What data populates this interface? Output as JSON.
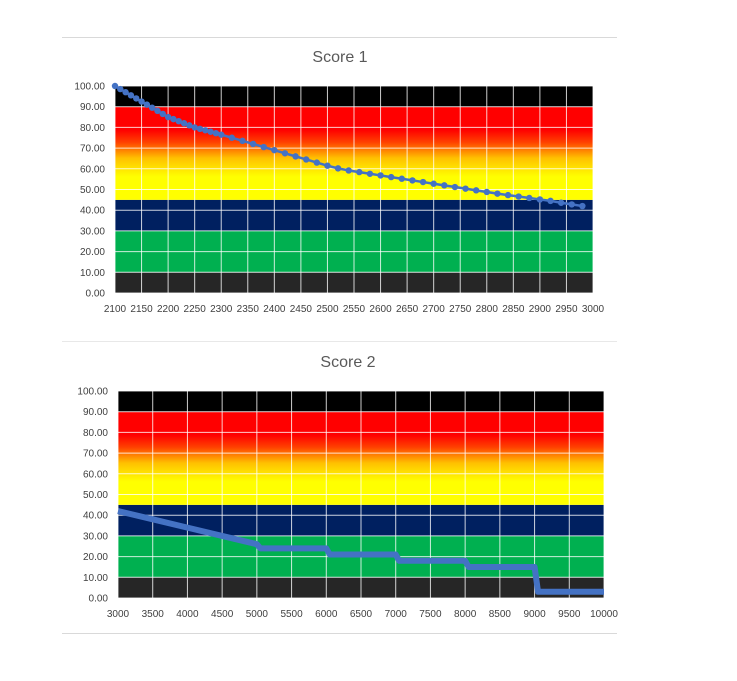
{
  "charts": [
    {
      "title": "Score 1",
      "chart_data": {
        "type": "scatter",
        "title": "Score 1",
        "xlim": [
          2100,
          3000
        ],
        "ylim": [
          0,
          100
        ],
        "x_ticks": [
          "2100",
          "2150",
          "2200",
          "2250",
          "2300",
          "2350",
          "2400",
          "2450",
          "2500",
          "2550",
          "2600",
          "2650",
          "2700",
          "2750",
          "2800",
          "2850",
          "2900",
          "2950",
          "3000"
        ],
        "y_ticks": [
          "0.00",
          "10.00",
          "20.00",
          "30.00",
          "40.00",
          "50.00",
          "60.00",
          "70.00",
          "80.00",
          "90.00",
          "100.00"
        ],
        "bands": [
          {
            "from": 0,
            "to": 10,
            "color": "#262626"
          },
          {
            "from": 10,
            "to": 30,
            "color": "#00b050"
          },
          {
            "from": 30,
            "to": 45,
            "color": "#002060"
          },
          {
            "from": 45,
            "to": 90,
            "color": "gradient-yellow-red"
          },
          {
            "from": 90,
            "to": 100,
            "color": "#000000"
          }
        ],
        "series_color": "#4472c4",
        "x": [
          2100,
          2110,
          2120,
          2130,
          2140,
          2150,
          2160,
          2170,
          2180,
          2190,
          2200,
          2210,
          2220,
          2230,
          2240,
          2250,
          2260,
          2270,
          2280,
          2290,
          2300,
          2320,
          2340,
          2360,
          2380,
          2400,
          2420,
          2440,
          2460,
          2480,
          2500,
          2520,
          2540,
          2560,
          2580,
          2600,
          2620,
          2640,
          2660,
          2680,
          2700,
          2720,
          2740,
          2760,
          2780,
          2800,
          2820,
          2840,
          2860,
          2880,
          2900,
          2920,
          2940,
          2960,
          2980
        ],
        "y": [
          100,
          98.5,
          97,
          95.5,
          94,
          92.5,
          91,
          89.5,
          88,
          86.5,
          85,
          84,
          83,
          82,
          81,
          80,
          79.3,
          78.6,
          77.9,
          77.2,
          76.5,
          75,
          73.5,
          72,
          70.5,
          69,
          67.5,
          66,
          64.5,
          63,
          61.5,
          60.2,
          59.2,
          58.4,
          57.6,
          56.8,
          56,
          55.2,
          54.4,
          53.6,
          52.8,
          52,
          51.2,
          50.4,
          49.6,
          48.8,
          48,
          47.3,
          46.6,
          45.9,
          45.2,
          44.5,
          43.6,
          42.8,
          42
        ]
      }
    },
    {
      "title": "Score 2",
      "chart_data": {
        "type": "line",
        "title": "Score 2",
        "xlim": [
          3000,
          10000
        ],
        "ylim": [
          0,
          100
        ],
        "x_ticks": [
          "3000",
          "3500",
          "4000",
          "4500",
          "5000",
          "5500",
          "6000",
          "6500",
          "7000",
          "7500",
          "8000",
          "8500",
          "9000",
          "9500",
          "10000"
        ],
        "y_ticks": [
          "0.00",
          "10.00",
          "20.00",
          "30.00",
          "40.00",
          "50.00",
          "60.00",
          "70.00",
          "80.00",
          "90.00",
          "100.00"
        ],
        "bands": [
          {
            "from": 0,
            "to": 10,
            "color": "#262626"
          },
          {
            "from": 10,
            "to": 30,
            "color": "#00b050"
          },
          {
            "from": 30,
            "to": 45,
            "color": "#002060"
          },
          {
            "from": 45,
            "to": 90,
            "color": "gradient-yellow-red"
          },
          {
            "from": 90,
            "to": 100,
            "color": "#000000"
          }
        ],
        "series_color": "#4472c4",
        "x": [
          3000,
          3500,
          4000,
          4500,
          5000,
          5050,
          6000,
          6050,
          7000,
          7050,
          8000,
          8050,
          9000,
          9050,
          10000
        ],
        "y": [
          42,
          38,
          34,
          30,
          26,
          24,
          24,
          21,
          21,
          18,
          18,
          15,
          15,
          3,
          3
        ]
      }
    }
  ]
}
